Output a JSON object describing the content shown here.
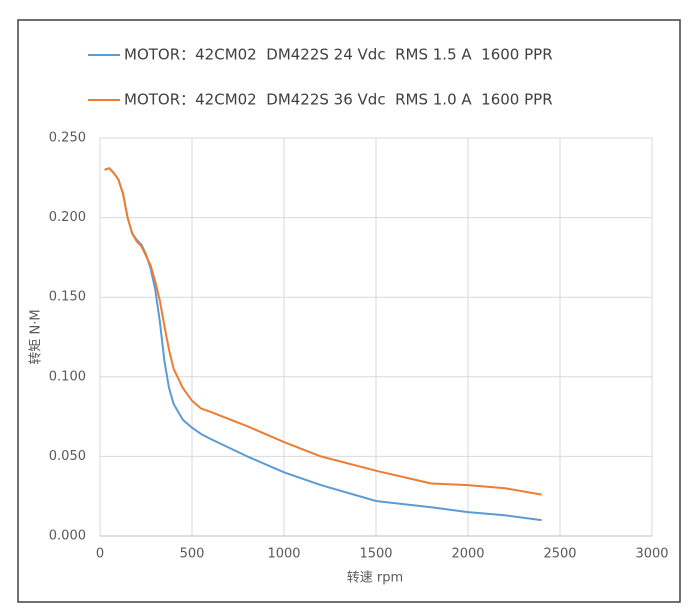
{
  "chart_data": {
    "type": "line",
    "x_label": "转速 rpm",
    "y_label": "转矩 N·M",
    "x": [
      25,
      50,
      75,
      100,
      125,
      150,
      175,
      200,
      225,
      250,
      275,
      300,
      325,
      350,
      375,
      400,
      450,
      500,
      550,
      600,
      800,
      1000,
      1200,
      1500,
      1800,
      2000,
      2200,
      2400
    ],
    "series": [
      {
        "name": "MOTOR：42CM02  DM422S 24 Vdc  RMS 1.5 A  1600 PPR",
        "color": "#5b9bd5",
        "values": [
          0.23,
          0.231,
          0.228,
          0.224,
          0.215,
          0.2,
          0.19,
          0.186,
          0.183,
          0.177,
          0.168,
          0.155,
          0.135,
          0.11,
          0.093,
          0.083,
          0.073,
          0.068,
          0.064,
          0.061,
          0.05,
          0.04,
          0.032,
          0.022,
          0.018,
          0.015,
          0.013,
          0.01
        ]
      },
      {
        "name": "MOTOR：42CM02  DM422S 36 Vdc  RMS 1.0 A  1600 PPR",
        "color": "#ed7d31",
        "values": [
          0.23,
          0.231,
          0.228,
          0.224,
          0.215,
          0.2,
          0.19,
          0.185,
          0.182,
          0.176,
          0.17,
          0.16,
          0.148,
          0.132,
          0.117,
          0.105,
          0.093,
          0.085,
          0.08,
          0.078,
          0.069,
          0.059,
          0.05,
          0.041,
          0.033,
          0.032,
          0.03,
          0.026
        ]
      }
    ],
    "xlim": [
      0,
      3000
    ],
    "xticks": [
      0,
      500,
      1000,
      1500,
      2000,
      2500,
      3000
    ],
    "ylim": [
      0,
      0.25
    ],
    "yticks": [
      {
        "value": 0,
        "label": "0.000"
      },
      {
        "value": 0.05,
        "label": "0.050"
      },
      {
        "value": 0.1,
        "label": "0.100"
      },
      {
        "value": 0.15,
        "label": "0.150"
      },
      {
        "value": 0.2,
        "label": "0.200"
      },
      {
        "value": 0.25,
        "label": "0.250"
      }
    ],
    "grid": true,
    "legend": "top"
  }
}
